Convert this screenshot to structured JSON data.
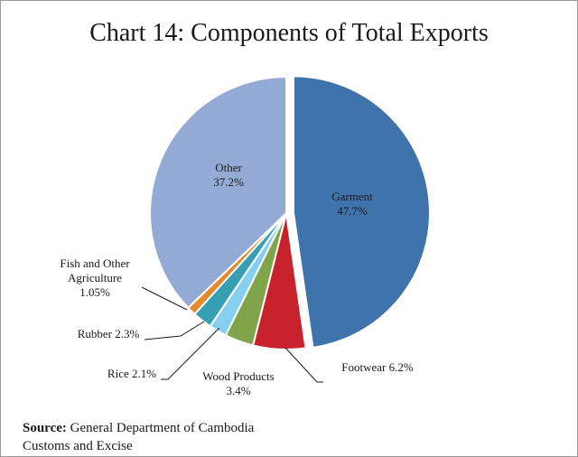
{
  "chart_data": {
    "type": "pie",
    "title": "Chart 14: Components of Total Exports",
    "slices": [
      {
        "label": "Garment",
        "value": 47.7,
        "value_text": "47.7%",
        "color": "#3f73ab",
        "exploded": true
      },
      {
        "label": "Footwear",
        "value": 6.2,
        "value_text": "6.2%",
        "color": "#c8232c"
      },
      {
        "label": "Wood Products",
        "value": 3.4,
        "value_text": "3.4%",
        "color": "#7fa44a"
      },
      {
        "label": "Rice",
        "value": 2.1,
        "value_text": "2.1%",
        "color": "#86d0ef"
      },
      {
        "label": "Rubber",
        "value": 2.3,
        "value_text": "2.3%",
        "color": "#36a0b2"
      },
      {
        "label": "Fish and Other Agriculture",
        "value": 1.05,
        "value_text": "1.05%",
        "color": "#e5892f"
      },
      {
        "label": "Other",
        "value": 37.2,
        "value_text": "37.2%",
        "color": "#93abd4"
      }
    ],
    "labels": {
      "garment": [
        "Garment",
        "47.7%"
      ],
      "footwear": [
        "Footwear 6.2%"
      ],
      "wood": [
        "Wood Products",
        "3.4%"
      ],
      "rice": [
        "Rice 2.1%"
      ],
      "rubber": [
        "Rubber 2.3%"
      ],
      "fish": [
        "Fish and Other",
        "Agriculture",
        "1.05%"
      ],
      "other": [
        "Other",
        "37.2%"
      ]
    }
  },
  "source": {
    "label": "Source:",
    "text_line1": " General Department of Cambodia",
    "text_line2": "Customs and Excise"
  }
}
